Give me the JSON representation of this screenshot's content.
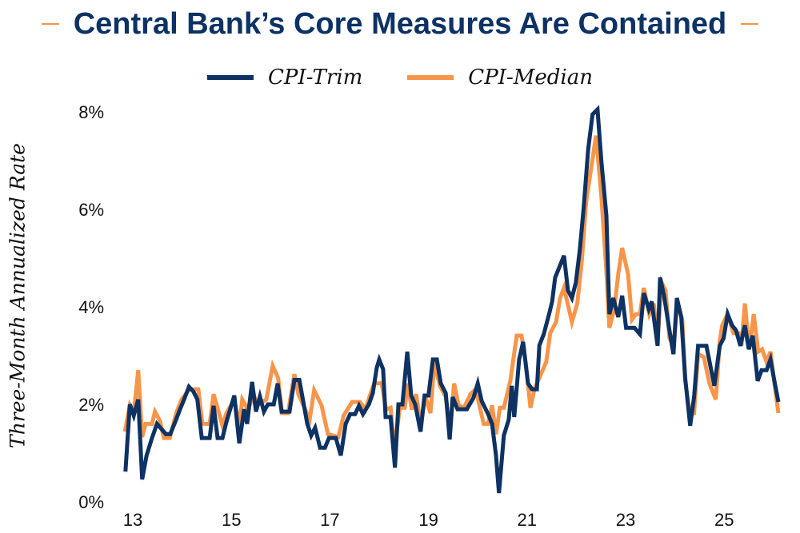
{
  "chart_data": {
    "type": "line",
    "title": "Central Bank’s Core Measures Are Contained",
    "xlabel": "",
    "ylabel": "Three-Month Annualized Rate",
    "xlim": [
      12.8,
      26.2
    ],
    "ylim": [
      0,
      8
    ],
    "x_ticks": [
      13,
      15,
      17,
      19,
      21,
      23,
      25
    ],
    "x_tick_labels": [
      "13",
      "15",
      "17",
      "19",
      "21",
      "23",
      "25"
    ],
    "y_ticks": [
      0,
      2,
      4,
      6,
      8
    ],
    "y_tick_labels": [
      "0%",
      "2%",
      "4%",
      "6%",
      "8%"
    ],
    "grid": false,
    "legend": "top-center",
    "series": [
      {
        "name": "CPI-Trim",
        "color": "#0d3263",
        "points": [
          [
            12.85,
            0.62
          ],
          [
            12.94,
            2.0
          ],
          [
            13.02,
            1.77
          ],
          [
            13.11,
            2.1
          ],
          [
            13.19,
            0.46
          ],
          [
            13.28,
            0.95
          ],
          [
            13.39,
            1.31
          ],
          [
            13.49,
            1.6
          ],
          [
            13.67,
            1.39
          ],
          [
            13.76,
            1.39
          ],
          [
            13.86,
            1.64
          ],
          [
            13.96,
            1.9
          ],
          [
            14.04,
            2.1
          ],
          [
            14.14,
            2.36
          ],
          [
            14.23,
            2.26
          ],
          [
            14.31,
            2.1
          ],
          [
            14.4,
            1.31
          ],
          [
            14.56,
            1.31
          ],
          [
            14.64,
            1.97
          ],
          [
            14.72,
            1.31
          ],
          [
            14.82,
            1.31
          ],
          [
            14.9,
            1.64
          ],
          [
            15.06,
            2.18
          ],
          [
            15.16,
            1.2
          ],
          [
            15.26,
            1.9
          ],
          [
            15.32,
            1.6
          ],
          [
            15.42,
            2.46
          ],
          [
            15.5,
            1.85
          ],
          [
            15.58,
            2.16
          ],
          [
            15.66,
            1.85
          ],
          [
            15.74,
            2.0
          ],
          [
            15.86,
            2.0
          ],
          [
            15.94,
            2.43
          ],
          [
            16.02,
            1.85
          ],
          [
            16.18,
            1.85
          ],
          [
            16.28,
            2.5
          ],
          [
            16.38,
            2.5
          ],
          [
            16.54,
            1.6
          ],
          [
            16.62,
            1.36
          ],
          [
            16.7,
            1.52
          ],
          [
            16.8,
            1.11
          ],
          [
            16.9,
            1.11
          ],
          [
            16.98,
            1.31
          ],
          [
            17.12,
            1.31
          ],
          [
            17.22,
            0.95
          ],
          [
            17.32,
            1.6
          ],
          [
            17.41,
            1.8
          ],
          [
            17.51,
            1.8
          ],
          [
            17.59,
            1.97
          ],
          [
            17.67,
            1.8
          ],
          [
            17.79,
            2.0
          ],
          [
            17.87,
            2.23
          ],
          [
            17.95,
            2.75
          ],
          [
            18.0,
            2.92
          ],
          [
            18.08,
            2.72
          ],
          [
            18.13,
            1.74
          ],
          [
            18.23,
            1.74
          ],
          [
            18.32,
            0.7
          ],
          [
            18.39,
            2.0
          ],
          [
            18.47,
            2.0
          ],
          [
            18.57,
            3.08
          ],
          [
            18.65,
            2.18
          ],
          [
            18.73,
            2.0
          ],
          [
            18.84,
            1.44
          ],
          [
            18.92,
            2.18
          ],
          [
            19.0,
            2.18
          ],
          [
            19.09,
            2.92
          ],
          [
            19.17,
            2.92
          ],
          [
            19.25,
            2.43
          ],
          [
            19.35,
            2.23
          ],
          [
            19.43,
            1.28
          ],
          [
            19.49,
            2.15
          ],
          [
            19.59,
            1.9
          ],
          [
            19.78,
            1.9
          ],
          [
            19.91,
            2.13
          ],
          [
            20.0,
            2.43
          ],
          [
            20.08,
            2.07
          ],
          [
            20.21,
            1.8
          ],
          [
            20.29,
            1.6
          ],
          [
            20.37,
            0.95
          ],
          [
            20.43,
            0.18
          ],
          [
            20.53,
            1.36
          ],
          [
            20.63,
            1.69
          ],
          [
            20.69,
            2.38
          ],
          [
            20.74,
            1.74
          ],
          [
            20.84,
            2.92
          ],
          [
            20.92,
            3.28
          ],
          [
            21.02,
            2.43
          ],
          [
            21.1,
            2.31
          ],
          [
            21.2,
            2.31
          ],
          [
            21.25,
            3.21
          ],
          [
            21.34,
            3.44
          ],
          [
            21.46,
            3.9
          ],
          [
            21.51,
            4.11
          ],
          [
            21.57,
            4.6
          ],
          [
            21.75,
            5.05
          ],
          [
            21.83,
            4.34
          ],
          [
            21.91,
            4.18
          ],
          [
            21.99,
            4.5
          ],
          [
            22.07,
            5.16
          ],
          [
            22.15,
            6.03
          ],
          [
            22.24,
            7.23
          ],
          [
            22.33,
            7.95
          ],
          [
            22.43,
            8.05
          ],
          [
            22.51,
            6.97
          ],
          [
            22.61,
            5.87
          ],
          [
            22.67,
            3.85
          ],
          [
            22.75,
            4.18
          ],
          [
            22.85,
            3.79
          ],
          [
            22.93,
            4.23
          ],
          [
            23.01,
            3.57
          ],
          [
            23.18,
            3.57
          ],
          [
            23.29,
            3.44
          ],
          [
            23.37,
            4.28
          ],
          [
            23.47,
            3.95
          ],
          [
            23.53,
            4.11
          ],
          [
            23.65,
            3.2
          ],
          [
            23.7,
            4.6
          ],
          [
            23.78,
            4.23
          ],
          [
            23.89,
            3.52
          ],
          [
            23.97,
            3.03
          ],
          [
            24.04,
            4.18
          ],
          [
            24.13,
            3.79
          ],
          [
            24.21,
            2.54
          ],
          [
            24.31,
            1.56
          ],
          [
            24.39,
            2.15
          ],
          [
            24.47,
            3.2
          ],
          [
            24.64,
            3.2
          ],
          [
            24.8,
            2.38
          ],
          [
            24.91,
            3.2
          ],
          [
            24.99,
            3.36
          ],
          [
            25.07,
            3.85
          ],
          [
            25.16,
            3.62
          ],
          [
            25.24,
            3.52
          ],
          [
            25.33,
            3.2
          ],
          [
            25.42,
            3.62
          ],
          [
            25.5,
            3.13
          ],
          [
            25.58,
            3.41
          ],
          [
            25.68,
            2.48
          ],
          [
            25.76,
            2.7
          ],
          [
            25.86,
            2.7
          ],
          [
            25.94,
            2.92
          ],
          [
            26.02,
            2.48
          ],
          [
            26.1,
            2.05
          ]
        ]
      },
      {
        "name": "CPI-Median",
        "color": "#f7954a",
        "points": [
          [
            12.84,
            1.44
          ],
          [
            12.94,
            1.98
          ],
          [
            13.02,
            1.82
          ],
          [
            13.11,
            2.7
          ],
          [
            13.19,
            1.33
          ],
          [
            13.26,
            1.6
          ],
          [
            13.39,
            1.6
          ],
          [
            13.45,
            1.85
          ],
          [
            13.55,
            1.66
          ],
          [
            13.63,
            1.31
          ],
          [
            13.75,
            1.31
          ],
          [
            13.88,
            1.82
          ],
          [
            13.99,
            2.1
          ],
          [
            14.15,
            2.31
          ],
          [
            14.33,
            2.31
          ],
          [
            14.41,
            1.6
          ],
          [
            14.56,
            1.6
          ],
          [
            14.64,
            2.21
          ],
          [
            14.82,
            1.56
          ],
          [
            14.9,
            1.82
          ],
          [
            15.06,
            2.1
          ],
          [
            15.16,
            1.56
          ],
          [
            15.22,
            2.1
          ],
          [
            15.34,
            1.89
          ],
          [
            15.45,
            2.21
          ],
          [
            15.53,
            1.98
          ],
          [
            15.71,
            2.1
          ],
          [
            15.84,
            2.79
          ],
          [
            15.95,
            2.54
          ],
          [
            16.03,
            1.82
          ],
          [
            16.15,
            1.82
          ],
          [
            16.28,
            2.62
          ],
          [
            16.36,
            2.21
          ],
          [
            16.59,
            1.69
          ],
          [
            16.68,
            2.29
          ],
          [
            16.83,
            1.98
          ],
          [
            16.96,
            1.39
          ],
          [
            17.17,
            1.33
          ],
          [
            17.28,
            1.77
          ],
          [
            17.45,
            2.05
          ],
          [
            17.61,
            2.05
          ],
          [
            17.72,
            1.89
          ],
          [
            17.8,
            2.15
          ],
          [
            17.9,
            2.43
          ],
          [
            18.05,
            2.43
          ],
          [
            18.14,
            1.89
          ],
          [
            18.23,
            1.93
          ],
          [
            18.31,
            1.11
          ],
          [
            18.42,
            1.93
          ],
          [
            18.52,
            1.93
          ],
          [
            18.58,
            2.43
          ],
          [
            18.66,
            1.89
          ],
          [
            18.75,
            2.21
          ],
          [
            18.84,
            1.6
          ],
          [
            18.94,
            2.15
          ],
          [
            19.04,
            1.82
          ],
          [
            19.12,
            2.87
          ],
          [
            19.23,
            2.38
          ],
          [
            19.35,
            2.15
          ],
          [
            19.44,
            1.44
          ],
          [
            19.52,
            2.43
          ],
          [
            19.61,
            1.98
          ],
          [
            19.72,
            1.93
          ],
          [
            19.85,
            2.21
          ],
          [
            19.96,
            2.31
          ],
          [
            20.12,
            1.6
          ],
          [
            20.21,
            1.6
          ],
          [
            20.29,
            1.98
          ],
          [
            20.37,
            1.39
          ],
          [
            20.45,
            1.93
          ],
          [
            20.53,
            1.93
          ],
          [
            20.66,
            2.48
          ],
          [
            20.79,
            3.41
          ],
          [
            20.89,
            3.41
          ],
          [
            20.97,
            2.87
          ],
          [
            21.07,
            1.93
          ],
          [
            21.15,
            2.31
          ],
          [
            21.29,
            2.64
          ],
          [
            21.39,
            2.87
          ],
          [
            21.47,
            3.46
          ],
          [
            21.59,
            3.69
          ],
          [
            21.67,
            4.18
          ],
          [
            21.75,
            4.39
          ],
          [
            21.91,
            3.69
          ],
          [
            22.02,
            4.07
          ],
          [
            22.11,
            4.93
          ],
          [
            22.2,
            6.15
          ],
          [
            22.32,
            6.97
          ],
          [
            22.4,
            7.51
          ],
          [
            22.51,
            6.25
          ],
          [
            22.61,
            4.72
          ],
          [
            22.67,
            3.57
          ],
          [
            22.77,
            3.95
          ],
          [
            22.85,
            4.67
          ],
          [
            22.93,
            5.21
          ],
          [
            23.05,
            4.67
          ],
          [
            23.13,
            3.74
          ],
          [
            23.21,
            3.85
          ],
          [
            23.29,
            3.85
          ],
          [
            23.37,
            4.39
          ],
          [
            23.48,
            3.85
          ],
          [
            23.57,
            4.07
          ],
          [
            23.65,
            3.3
          ],
          [
            23.73,
            4.5
          ],
          [
            23.81,
            4.34
          ],
          [
            23.89,
            3.36
          ],
          [
            23.97,
            3.2
          ],
          [
            24.05,
            4.07
          ],
          [
            24.15,
            3.74
          ],
          [
            24.21,
            2.48
          ],
          [
            24.3,
            1.82
          ],
          [
            24.39,
            1.82
          ],
          [
            24.47,
            3.03
          ],
          [
            24.59,
            2.97
          ],
          [
            24.7,
            2.43
          ],
          [
            24.83,
            2.1
          ],
          [
            24.91,
            3.3
          ],
          [
            24.96,
            3.62
          ],
          [
            25.07,
            3.85
          ],
          [
            25.19,
            3.46
          ],
          [
            25.29,
            3.46
          ],
          [
            25.35,
            3.2
          ],
          [
            25.42,
            4.07
          ],
          [
            25.51,
            3.13
          ],
          [
            25.6,
            3.85
          ],
          [
            25.69,
            3.08
          ],
          [
            25.77,
            3.13
          ],
          [
            25.86,
            2.87
          ],
          [
            25.94,
            3.08
          ],
          [
            26.02,
            2.43
          ],
          [
            26.1,
            1.82
          ]
        ]
      }
    ]
  }
}
